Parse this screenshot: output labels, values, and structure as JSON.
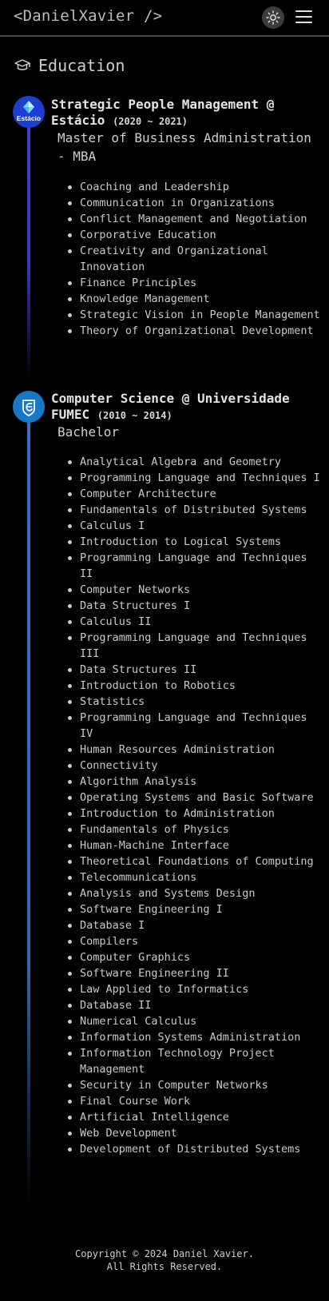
{
  "header": {
    "logo": "<DanielXavier />",
    "theme_icon": "sun-icon",
    "menu_icon": "hamburger-menu-icon"
  },
  "section": {
    "title": "Education",
    "icon": "graduation-cap-icon"
  },
  "education": [
    {
      "institution": "Strategic People Management @ Estácio",
      "period": "(2020 ~ 2021)",
      "degree": "Master of Business Administration - MBA",
      "logo_text": "Estácio",
      "courses": [
        "Coaching and Leadership",
        "Communication in Organizations",
        "Conflict Management and Negotiation",
        "Corporative Education",
        "Creativity and Organizational Innovation",
        "Finance Principles",
        "Knowledge Management",
        "Strategic Vision in People Management",
        "Theory of Organizational Development"
      ]
    },
    {
      "institution": "Computer Science @ Universidade FUMEC",
      "period": "(2010 ~ 2014)",
      "degree": "Bachelor",
      "logo_text": "",
      "courses": [
        "Analytical Algebra and Geometry",
        "Programming Language and Techniques I",
        "Computer Architecture",
        "Fundamentals of Distributed Systems",
        "Calculus I",
        "Introduction to Logical Systems",
        "Programming Language and Techniques II",
        "Computer Networks",
        "Data Structures I",
        "Calculus II",
        "Programming Language and Techniques III",
        "Data Structures II",
        "Introduction to Robotics",
        "Statistics",
        "Programming Language and Techniques IV",
        "Human Resources Administration",
        "Connectivity",
        "Algorithm Analysis",
        "Operating Systems and Basic Software",
        "Introduction to Administration",
        "Fundamentals of Physics",
        "Human-Machine Interface",
        "Theoretical Foundations of Computing",
        "Telecommunications",
        "Analysis and Systems Design",
        "Software Engineering I",
        "Database I",
        "Compilers",
        "Computer Graphics",
        "Software Engineering II",
        "Law Applied to Informatics",
        "Database II",
        "Numerical Calculus",
        "Information Systems Administration",
        "Information Technology Project Management",
        "Security in Computer Networks",
        "Final Course Work",
        "Artificial Intelligence",
        "Web Development",
        "Development of Distributed Systems"
      ]
    }
  ],
  "footer": {
    "line1": "Copyright © 2024 Daniel Xavier.",
    "line2": "All Rights Reserved."
  }
}
